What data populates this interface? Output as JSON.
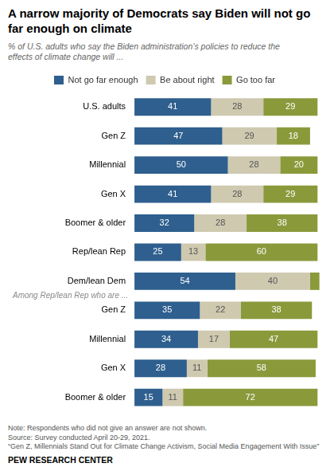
{
  "chart_data": {
    "type": "bar",
    "orientation": "horizontal",
    "stacked": true,
    "title": "A narrow majority of Democrats say Biden will not go\nfar enough on climate",
    "subtitle": "% of U.S. adults who say the Biden administration’s policies to reduce the\neffects of climate change will ...",
    "categories": [
      "U.S. adults",
      "Gen Z",
      "Millennial",
      "Gen X",
      "Boomer & older",
      "Rep/lean Rep",
      "Dem/lean Dem",
      "Gen Z",
      "Millennial",
      "Gen X",
      "Boomer & older"
    ],
    "series": [
      {
        "name": "Not go far enough",
        "color": "#2e5f8e",
        "values": [
          41,
          47,
          50,
          41,
          32,
          25,
          54,
          35,
          34,
          28,
          15
        ]
      },
      {
        "name": "Be about right",
        "color": "#cfc9b0",
        "values": [
          28,
          29,
          28,
          28,
          28,
          13,
          40,
          22,
          17,
          11,
          11
        ]
      },
      {
        "name": "Go too far",
        "color": "#8a9a3b",
        "values": [
          29,
          18,
          20,
          29,
          38,
          60,
          5,
          38,
          47,
          58,
          72
        ],
        "value_labels": [
          "29",
          "18",
          "20",
          "29",
          "38",
          "60",
          null,
          "38",
          "47",
          "58",
          "72"
        ]
      }
    ],
    "xlim": [
      0,
      100
    ],
    "tick_labels": "y",
    "grid": false,
    "legend": "top",
    "data_labels": true,
    "annotation": "Among Rep/lean Rep who are ...",
    "notes": [
      "Note: Respondents who did not give an answer are not shown.",
      "Source: Survey conducted April 20-29, 2021.",
      "“Gen Z, Millennials Stand Out for Climate Change Activism, Social Media Engagement With Issue”"
    ],
    "source": "PEW RESEARCH CENTER"
  }
}
